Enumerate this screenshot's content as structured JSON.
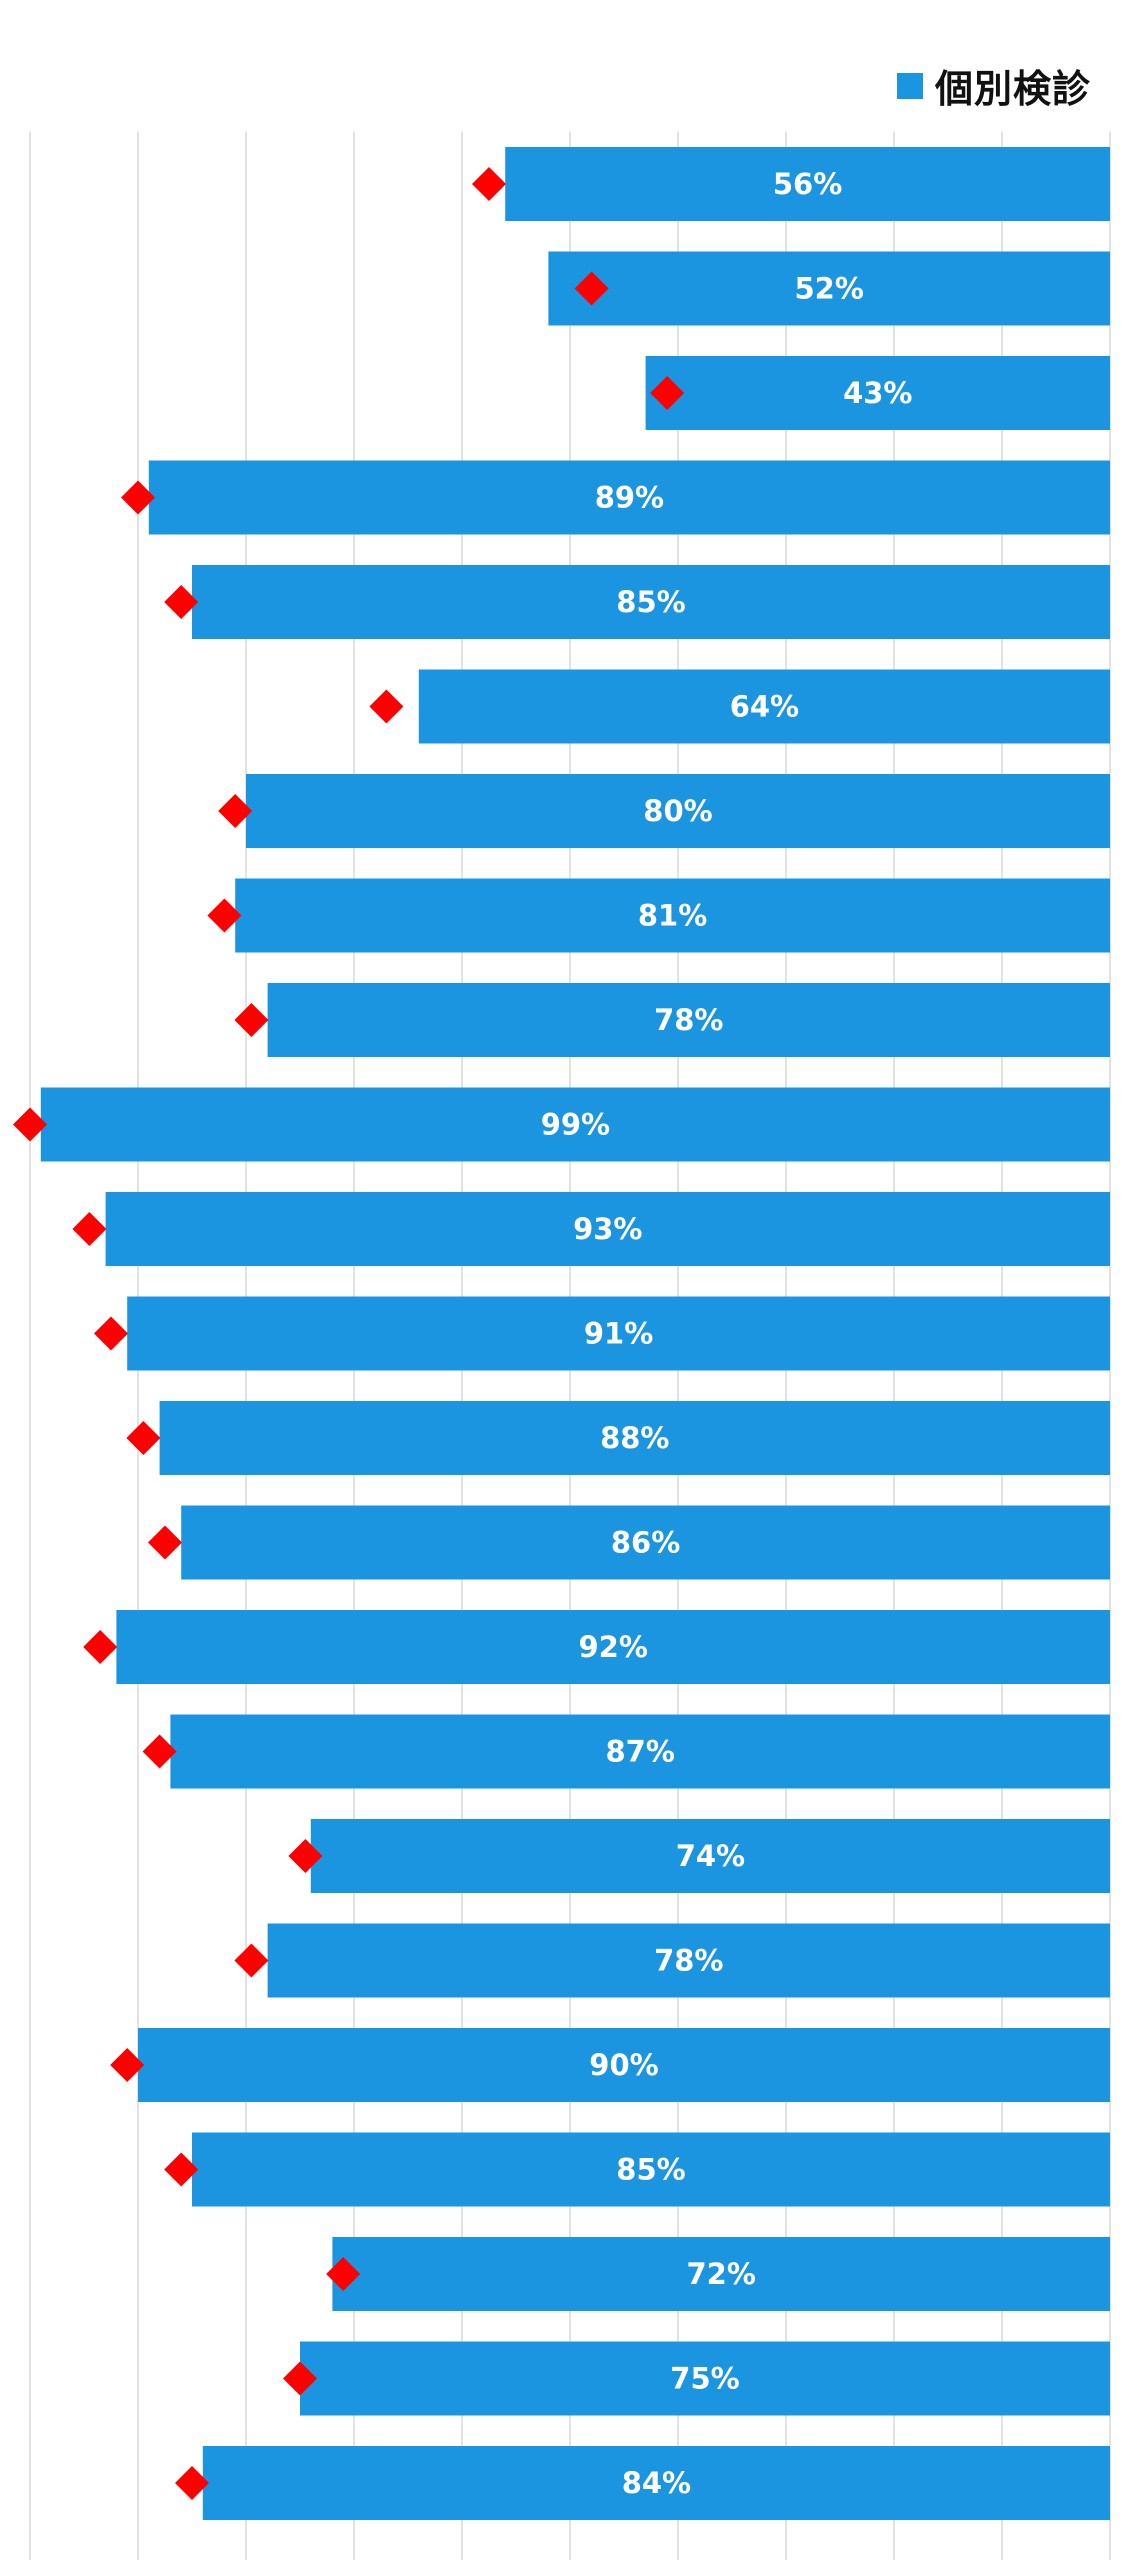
{
  "chart_data": {
    "type": "bar",
    "orientation": "horizontal",
    "bar_direction": "right-to-left",
    "series": [
      {
        "name": "個別検診",
        "values": [
          56,
          52,
          43,
          89,
          85,
          64,
          80,
          81,
          78,
          99,
          93,
          91,
          88,
          86,
          92,
          87,
          74,
          78,
          90,
          85,
          72,
          75,
          84
        ],
        "labels": [
          "56%",
          "52%",
          "43%",
          "89%",
          "85%",
          "64%",
          "80%",
          "81%",
          "78%",
          "99%",
          "93%",
          "91%",
          "88%",
          "86%",
          "92%",
          "87%",
          "74%",
          "78%",
          "90%",
          "85%",
          "72%",
          "75%",
          "84%"
        ]
      },
      {
        "name": "",
        "marker": "diamond",
        "values": [
          57.5,
          48,
          41,
          90,
          86,
          67,
          81,
          82,
          79.5,
          100,
          94.5,
          92.5,
          89.5,
          87.5,
          93.5,
          88,
          74.5,
          79.5,
          91,
          86,
          71,
          75,
          85
        ]
      }
    ],
    "xlim": [
      0,
      100
    ],
    "gridlines": [
      0,
      10,
      20,
      30,
      40,
      50,
      60,
      70,
      80,
      90,
      100
    ],
    "grid": true,
    "legend": "top-right",
    "colors": {
      "bar": "#1b95e0",
      "marker": "#ff0000",
      "grid": "#d9d9d9",
      "label": "#ffffff"
    }
  }
}
